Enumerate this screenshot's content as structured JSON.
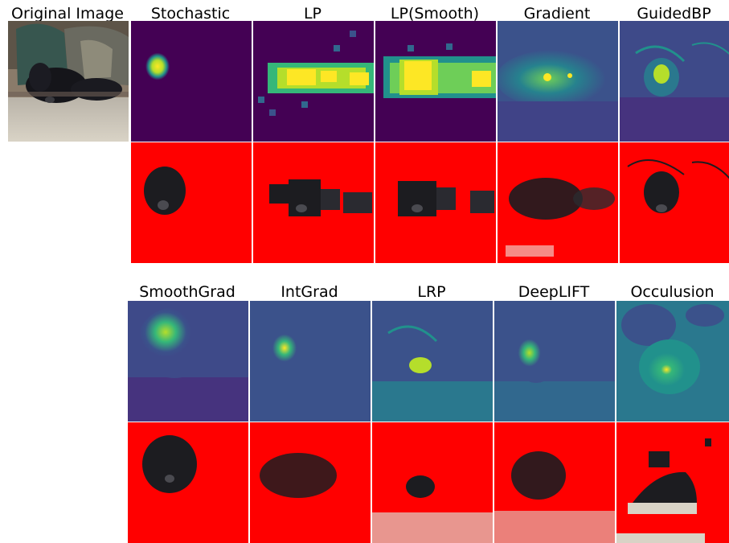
{
  "original": {
    "title": "Original Image"
  },
  "row1": [
    {
      "title": "Stochastic"
    },
    {
      "title": "LP"
    },
    {
      "title": "LP(Smooth)"
    },
    {
      "title": "Gradient"
    },
    {
      "title": "GuidedBP"
    }
  ],
  "row2": [
    {
      "title": "SmoothGrad"
    },
    {
      "title": "IntGrad"
    },
    {
      "title": "LRP"
    },
    {
      "title": "DeepLIFT"
    },
    {
      "title": "Occulusion"
    }
  ],
  "colors": {
    "heatmap_low": "#440154",
    "heatmap_mid": "#21918c",
    "heatmap_high": "#fde725",
    "mask_red": "#ff0000",
    "dog_black": "#1c1c20"
  }
}
